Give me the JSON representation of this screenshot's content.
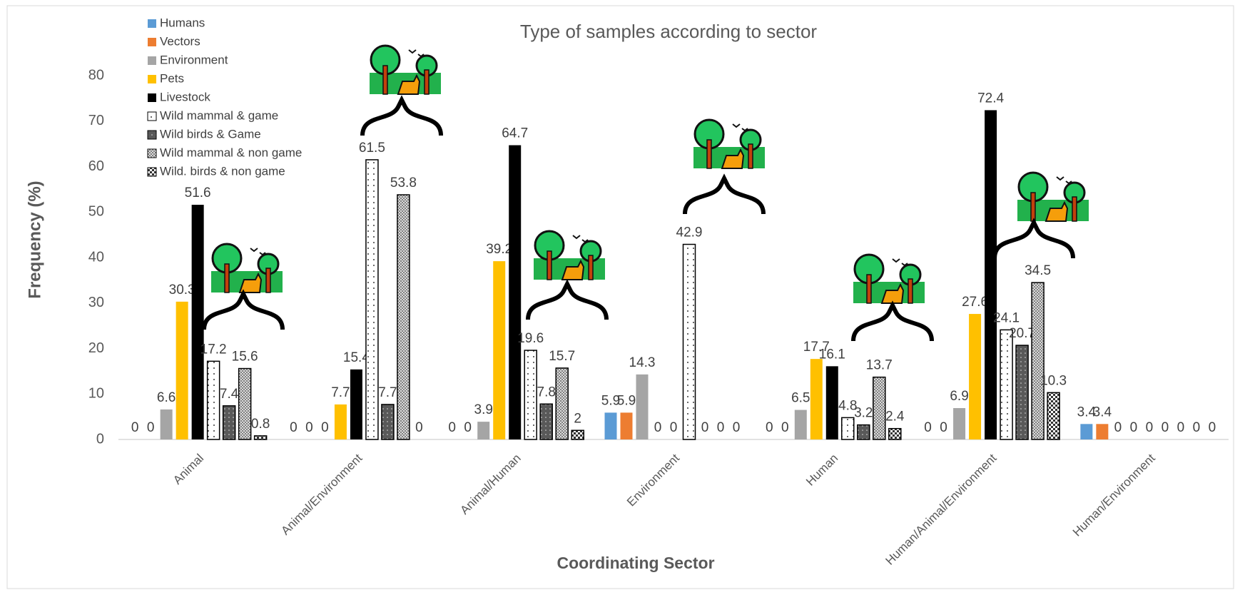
{
  "chart_data": {
    "type": "bar",
    "title": "Type of samples according to sector",
    "x_label": "Coordinating Sector",
    "y_label": "Frequency (%)",
    "categories": [
      "Animal",
      "Animal/Environment",
      "Animal/Human",
      "Environment",
      "Human",
      "Human/Animal/Environment",
      "Human/Environment"
    ],
    "series": [
      {
        "name": "Humans",
        "color": "#5b9bd5",
        "values": [
          0,
          0,
          0,
          5.9,
          0,
          0,
          3.4
        ]
      },
      {
        "name": "Vectors",
        "color": "#ed7d31",
        "values": [
          0,
          0,
          0,
          5.9,
          0,
          0,
          3.4
        ]
      },
      {
        "name": "Environment",
        "color": "#a5a5a5",
        "values": [
          6.6,
          0,
          3.9,
          14.3,
          6.5,
          6.9,
          0
        ]
      },
      {
        "name": "Pets",
        "color": "#ffc000",
        "values": [
          30.3,
          7.7,
          39.2,
          0,
          17.7,
          27.6,
          0
        ]
      },
      {
        "name": "Livestock",
        "color": "#000000",
        "values": [
          51.6,
          15.4,
          64.7,
          0,
          16.1,
          72.4,
          0
        ]
      },
      {
        "name": "Wild mammal & game",
        "color": "#ffffff",
        "pattern": "dots",
        "values": [
          17.2,
          61.5,
          19.6,
          42.9,
          4.8,
          24.1,
          0
        ]
      },
      {
        "name": "Wild birds & Game",
        "color": "#595959",
        "pattern": "dark-dots",
        "values": [
          7.4,
          7.7,
          7.8,
          0,
          3.2,
          20.7,
          0
        ]
      },
      {
        "name": "Wild mammal & non game",
        "color": "#a0a0a0",
        "pattern": "crosshatch",
        "values": [
          15.6,
          53.8,
          15.7,
          0,
          13.7,
          34.5,
          0
        ]
      },
      {
        "name": "Wild. birds & non game",
        "color": "#404040",
        "pattern": "checker",
        "values": [
          0.8,
          0,
          2,
          0,
          2.4,
          10.3,
          0
        ]
      }
    ],
    "ylim": [
      0,
      80
    ],
    "yticks": [
      0,
      10,
      20,
      30,
      40,
      50,
      60,
      70,
      80
    ],
    "grid": false,
    "legend": "top-left"
  }
}
